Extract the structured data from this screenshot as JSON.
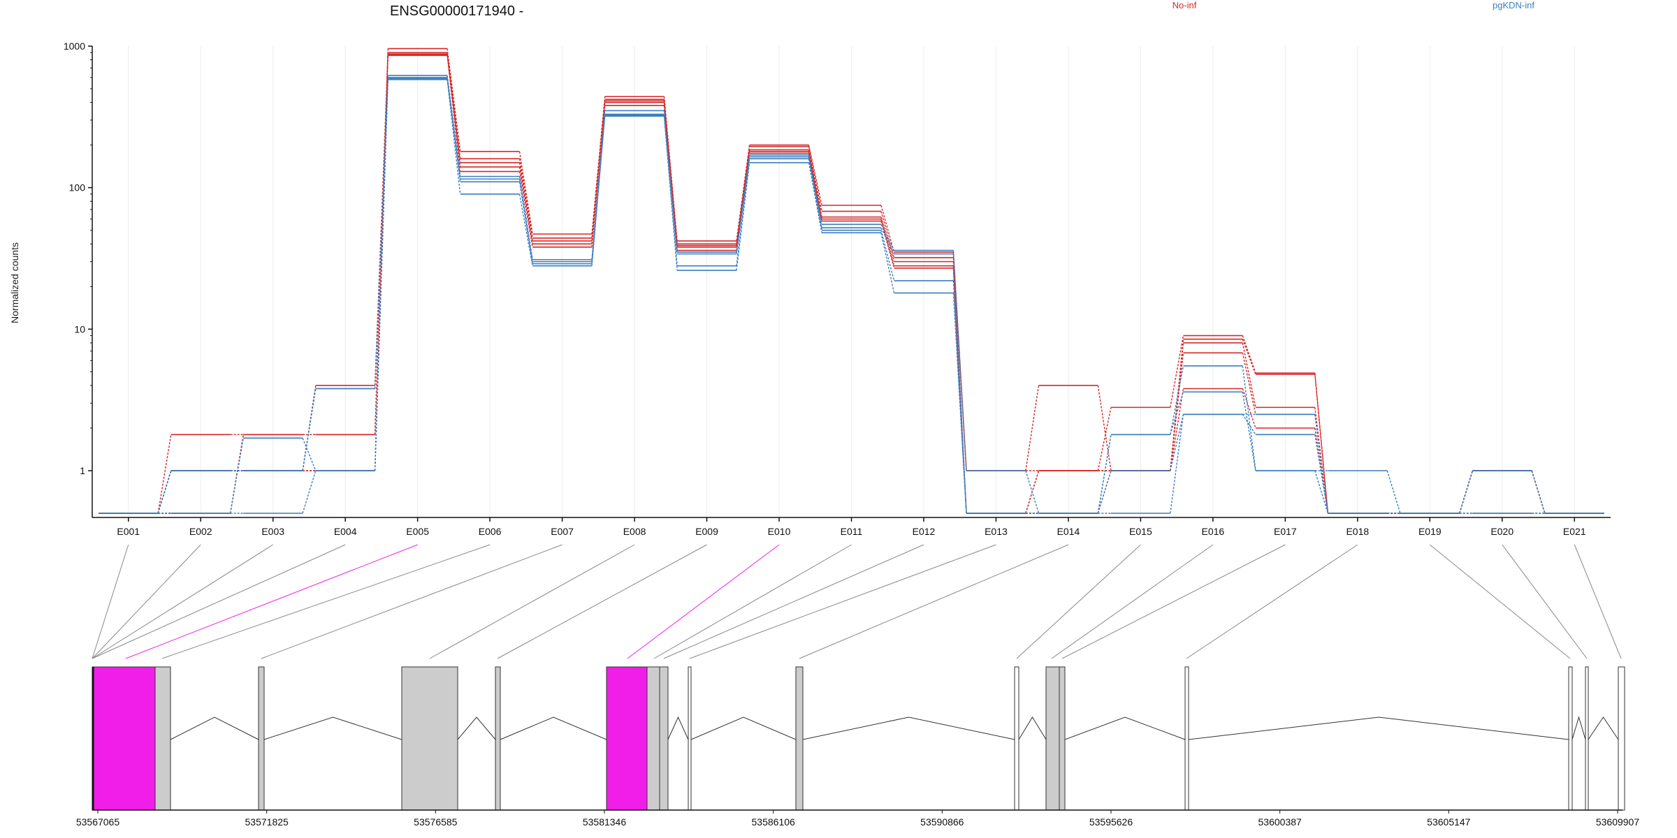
{
  "chart_data": {
    "type": "line",
    "title": "ENSG00000171940 -",
    "ylabel": "Normalized counts",
    "y_scale": "log",
    "y_ticks": [
      "1000",
      "100",
      "10",
      "1"
    ],
    "y_tick_values": [
      1000,
      100,
      10,
      1
    ],
    "exons": [
      "E001",
      "E002",
      "E003",
      "E004",
      "E005",
      "E006",
      "E007",
      "E008",
      "E009",
      "E010",
      "E011",
      "E012",
      "E013",
      "E014",
      "E015",
      "E016",
      "E017",
      "E018",
      "E019",
      "E020",
      "E021"
    ],
    "highlighted_exons": [
      "E005",
      "E010"
    ],
    "colors": {
      "No-inf": "#d62728",
      "pgKDN-inf": "#3a7ebf",
      "highlight": "#f01ee8",
      "exon_fill": "#cccccc"
    },
    "series": [
      {
        "name": "No-inf",
        "group": "No-inf",
        "values": [
          0.5,
          1.8,
          1.8,
          1.8,
          960,
          180,
          47,
          440,
          42,
          200,
          75,
          35,
          1.0,
          1.0,
          2.8,
          9.0,
          4.9,
          0.5,
          0.5,
          1.0,
          0.5
        ]
      },
      {
        "group": "No-inf",
        "values": [
          0.5,
          1.0,
          1.0,
          1.0,
          900,
          160,
          44,
          420,
          40,
          195,
          68,
          32,
          1.0,
          4.0,
          1.0,
          8.5,
          4.8,
          0.5,
          0.5,
          1.0,
          0.5
        ]
      },
      {
        "group": "No-inf",
        "values": [
          0.5,
          1.0,
          1.0,
          1.0,
          880,
          150,
          42,
          410,
          39,
          185,
          62,
          30,
          0.5,
          1.0,
          1.0,
          8.0,
          2.8,
          0.5,
          0.5,
          1.0,
          0.5
        ]
      },
      {
        "group": "No-inf",
        "values": [
          0.5,
          1.0,
          1.0,
          4.0,
          870,
          140,
          40,
          400,
          38,
          180,
          60,
          28,
          0.5,
          1.0,
          1.0,
          6.8,
          2.5,
          0.5,
          0.5,
          1.0,
          0.5
        ]
      },
      {
        "group": "No-inf",
        "values": [
          0.5,
          0.5,
          1.8,
          1.8,
          860,
          130,
          38,
          380,
          36,
          175,
          58,
          27,
          0.5,
          0.5,
          1.0,
          3.8,
          2.0,
          0.5,
          0.5,
          1.0,
          0.5
        ]
      },
      {
        "name": "pgKDN-inf",
        "group": "pgKDN-inf",
        "values": [
          0.5,
          1.0,
          1.0,
          3.8,
          620,
          120,
          31,
          350,
          35,
          170,
          55,
          36,
          1.0,
          0.5,
          1.8,
          5.5,
          1.0,
          1.0,
          0.5,
          1.0,
          0.5
        ]
      },
      {
        "group": "pgKDN-inf",
        "values": [
          0.5,
          1.0,
          1.0,
          3.8,
          600,
          115,
          30,
          330,
          34,
          165,
          52,
          34,
          0.5,
          0.5,
          1.8,
          3.6,
          1.0,
          0.5,
          0.5,
          1.0,
          0.5
        ]
      },
      {
        "group": "pgKDN-inf",
        "values": [
          0.5,
          0.5,
          1.7,
          1.0,
          590,
          110,
          29,
          325,
          28,
          160,
          50,
          22,
          0.5,
          0.5,
          1.0,
          2.5,
          2.5,
          0.5,
          0.5,
          0.5,
          0.5
        ]
      },
      {
        "group": "pgKDN-inf",
        "values": [
          0.5,
          0.5,
          0.5,
          1.0,
          580,
          90,
          28,
          320,
          26,
          150,
          48,
          18,
          0.5,
          0.5,
          0.5,
          2.5,
          1.8,
          0.5,
          0.5,
          0.5,
          0.5
        ]
      }
    ],
    "gene_model": {
      "coord_ticks": [
        "53567065",
        "53571825",
        "53576585",
        "53581346",
        "53586106",
        "53590866",
        "53595626",
        "53600387",
        "53605147",
        "53609907"
      ]
    }
  }
}
